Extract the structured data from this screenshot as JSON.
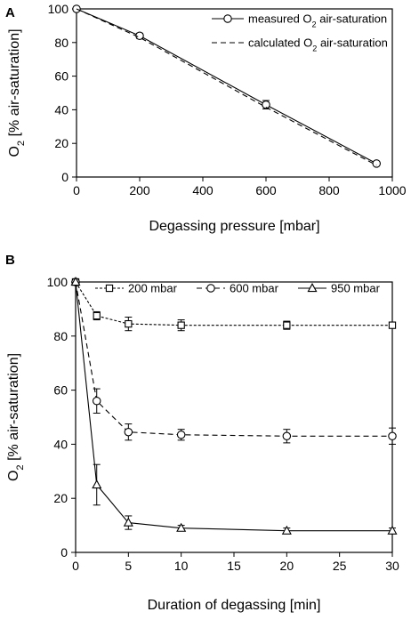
{
  "chart_data": [
    {
      "panel": "A",
      "type": "line",
      "xlabel": "Degassing pressure [mbar]",
      "ylabel": {
        "main": "O",
        "sub": "2",
        "rest": " [% air-saturation]"
      },
      "xlim": [
        0,
        1000
      ],
      "ylim": [
        0,
        100
      ],
      "xticks": [
        "0",
        "200",
        "400",
        "600",
        "800",
        "1000"
      ],
      "yticks": [
        "0",
        "20",
        "40",
        "60",
        "80",
        "100"
      ],
      "legend_position": "top-right",
      "series": [
        {
          "name": {
            "main": "measured O",
            "sub": "2",
            "rest": " air-saturation"
          },
          "style": "solid",
          "marker": "circle",
          "x": [
            0,
            200,
            600,
            950
          ],
          "y": [
            100,
            84,
            43,
            8
          ],
          "err": [
            0,
            1.5,
            2.5,
            1
          ]
        },
        {
          "name": {
            "main": "calculated O",
            "sub": "2",
            "rest": " air-saturation"
          },
          "style": "dashed",
          "marker": "none",
          "x": [
            0,
            200,
            600,
            950
          ],
          "y": [
            100,
            83,
            41.5,
            7
          ]
        }
      ]
    },
    {
      "panel": "B",
      "type": "line",
      "xlabel": "Duration of degassing [min]",
      "ylabel": {
        "main": "O",
        "sub": "2",
        "rest": " [% air-saturation]"
      },
      "xlim": [
        0,
        30
      ],
      "ylim": [
        0,
        100
      ],
      "xticks": [
        "0",
        "5",
        "10",
        "15",
        "20",
        "25",
        "30"
      ],
      "yticks": [
        "0",
        "20",
        "40",
        "60",
        "80",
        "100"
      ],
      "legend_position": "top",
      "series": [
        {
          "name": "200 mbar",
          "style": "dotted",
          "marker": "square",
          "x": [
            0,
            2,
            5,
            10,
            20,
            30
          ],
          "y": [
            100,
            87.5,
            84.5,
            84,
            84,
            84
          ],
          "err": [
            0,
            1.5,
            2.5,
            2,
            1.5,
            1
          ]
        },
        {
          "name": "600 mbar",
          "style": "dashed",
          "marker": "circle",
          "x": [
            0,
            2,
            5,
            10,
            20,
            30
          ],
          "y": [
            100,
            56,
            44.5,
            43.5,
            43,
            43
          ],
          "err": [
            0,
            4.5,
            3,
            2,
            2.5,
            3
          ]
        },
        {
          "name": "950 mbar",
          "style": "solid",
          "marker": "triangle",
          "x": [
            0,
            2,
            5,
            10,
            20,
            30
          ],
          "y": [
            100,
            25,
            11,
            9,
            8,
            8
          ],
          "err": [
            0,
            7.5,
            2.5,
            1,
            1,
            1
          ]
        }
      ]
    }
  ]
}
